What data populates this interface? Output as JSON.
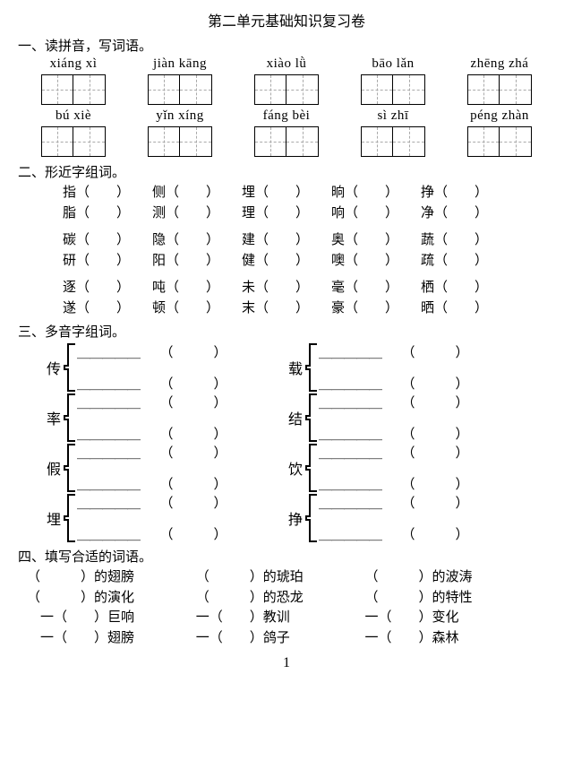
{
  "title": "第二单元基础知识复习卷",
  "section1": {
    "heading": "一、读拼音，写词语。",
    "row1": [
      "xiáng xì",
      "jiàn kāng",
      "xiào lǜ",
      "bāo lǎn",
      "zhēng zhá"
    ],
    "row2": [
      "bú xiè",
      "yǐn xíng",
      "fáng bèi",
      "sì zhī",
      "péng zhàn"
    ]
  },
  "section2": {
    "heading": "二、形近字组词。",
    "pairs": [
      [
        "指",
        "侧",
        "埋",
        "晌",
        "挣"
      ],
      [
        "脂",
        "测",
        "理",
        "响",
        "净"
      ],
      [
        "碳",
        "隐",
        "建",
        "奥",
        "蔬"
      ],
      [
        "研",
        "阳",
        "健",
        "噢",
        "疏"
      ],
      [
        "逐",
        "吨",
        "未",
        "毫",
        "栖"
      ],
      [
        "遂",
        "顿",
        "末",
        "豪",
        "晒"
      ]
    ]
  },
  "section3": {
    "heading": "三、多音字组词。",
    "chars": [
      [
        "传",
        "载"
      ],
      [
        "率",
        "结"
      ],
      [
        "假",
        "饮"
      ],
      [
        "埋",
        "挣"
      ]
    ]
  },
  "section4": {
    "heading": "四、填写合适的词语。",
    "line1": [
      "的翅膀",
      "的琥珀",
      "的波涛"
    ],
    "line2": [
      "的演化",
      "的恐龙",
      "的特性"
    ],
    "line3": [
      "巨响",
      "教训",
      "变化"
    ],
    "line4": [
      "翅膀",
      "鸽子",
      "森林"
    ]
  },
  "pageNum": "1"
}
